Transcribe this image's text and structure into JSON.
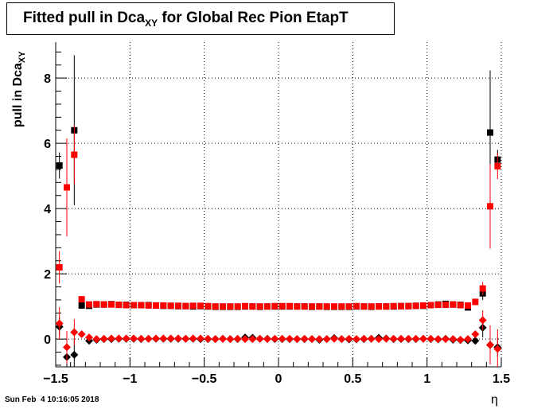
{
  "title": {
    "main": "Fitted pull in Dca",
    "sub": "XY",
    "rest": " for Global Rec Pion EtapT"
  },
  "ylabel": {
    "main": "pull in Dca",
    "sub": "XY"
  },
  "xlabel": "η",
  "datestamp": "Sun Feb  4 10:16:05 2018",
  "chart_data": {
    "type": "scatter",
    "xlim": [
      -1.5,
      1.5
    ],
    "ylim": [
      -0.85,
      9.1
    ],
    "xticks": [
      -1.5,
      -1,
      -0.5,
      0,
      0.5,
      1,
      1.5
    ],
    "xtick_labels": [
      "−1.5",
      "−1",
      "−0.5",
      "0",
      "0.5",
      "1",
      "1.5"
    ],
    "yticks": [
      0,
      2,
      4,
      6,
      8
    ],
    "ytick_labels": [
      "0",
      "2",
      "4",
      "6",
      "8"
    ],
    "grid": true,
    "series": [
      {
        "marker": "square",
        "color": "#000000",
        "points": [
          [
            -1.475,
            5.32,
            0.4
          ],
          [
            -1.375,
            6.4,
            2.3
          ],
          [
            -1.325,
            1.03,
            0.1
          ],
          [
            -1.275,
            1.02,
            0.05
          ],
          [
            -1.225,
            1.06,
            0.05
          ],
          [
            -1.175,
            1.06,
            0.04
          ],
          [
            -1.125,
            1.07,
            0.04
          ],
          [
            -1.075,
            1.05,
            0.03
          ],
          [
            -1.025,
            1.05,
            0.03
          ],
          [
            -0.975,
            1.04,
            0.03
          ],
          [
            -0.925,
            1.04,
            0.03
          ],
          [
            -0.875,
            1.04,
            0.03
          ],
          [
            -0.825,
            1.03,
            0.03
          ],
          [
            -0.775,
            1.02,
            0.03
          ],
          [
            -0.725,
            1.02,
            0.03
          ],
          [
            -0.675,
            1.01,
            0.03
          ],
          [
            -0.625,
            1.01,
            0.03
          ],
          [
            -0.575,
            1.0,
            0.03
          ],
          [
            -0.525,
            1.01,
            0.03
          ],
          [
            -0.475,
            1.0,
            0.03
          ],
          [
            -0.425,
            0.99,
            0.03
          ],
          [
            -0.375,
            0.99,
            0.03
          ],
          [
            -0.325,
            0.99,
            0.03
          ],
          [
            -0.275,
            0.99,
            0.03
          ],
          [
            -0.225,
            1.0,
            0.03
          ],
          [
            -0.175,
            1.0,
            0.03
          ],
          [
            -0.125,
            0.99,
            0.03
          ],
          [
            -0.075,
            1.0,
            0.03
          ],
          [
            -0.025,
            1.0,
            0.03
          ],
          [
            0.025,
            1.0,
            0.03
          ],
          [
            0.075,
            1.0,
            0.03
          ],
          [
            0.125,
            1.0,
            0.03
          ],
          [
            0.175,
            1.0,
            0.03
          ],
          [
            0.225,
            0.99,
            0.03
          ],
          [
            0.275,
            1.0,
            0.03
          ],
          [
            0.325,
            0.99,
            0.03
          ],
          [
            0.375,
            0.99,
            0.03
          ],
          [
            0.425,
            0.99,
            0.03
          ],
          [
            0.475,
            0.99,
            0.03
          ],
          [
            0.525,
            1.0,
            0.03
          ],
          [
            0.575,
            1.0,
            0.03
          ],
          [
            0.625,
            0.99,
            0.03
          ],
          [
            0.675,
            1.0,
            0.03
          ],
          [
            0.725,
            1.0,
            0.03
          ],
          [
            0.775,
            1.0,
            0.03
          ],
          [
            0.825,
            1.01,
            0.03
          ],
          [
            0.875,
            1.01,
            0.03
          ],
          [
            0.925,
            1.02,
            0.03
          ],
          [
            0.975,
            1.02,
            0.03
          ],
          [
            1.025,
            1.04,
            0.03
          ],
          [
            1.075,
            1.06,
            0.04
          ],
          [
            1.125,
            1.08,
            0.04
          ],
          [
            1.175,
            1.06,
            0.05
          ],
          [
            1.225,
            1.05,
            0.05
          ],
          [
            1.275,
            0.97,
            0.06
          ],
          [
            1.375,
            1.4,
            0.2
          ],
          [
            1.425,
            6.33,
            1.9
          ],
          [
            1.475,
            5.5,
            0.3
          ]
        ]
      },
      {
        "marker": "square",
        "color": "#ff0000",
        "points": [
          [
            -1.475,
            2.2,
            0.5
          ],
          [
            -1.425,
            4.65,
            1.5
          ],
          [
            -1.375,
            5.65,
            0.9
          ],
          [
            -1.325,
            1.22,
            0.1
          ],
          [
            -1.275,
            1.06,
            0.05
          ],
          [
            -1.225,
            1.07,
            0.05
          ],
          [
            -1.175,
            1.06,
            0.04
          ],
          [
            -1.125,
            1.06,
            0.04
          ],
          [
            -1.075,
            1.05,
            0.03
          ],
          [
            -1.025,
            1.04,
            0.03
          ],
          [
            -0.975,
            1.04,
            0.03
          ],
          [
            -0.925,
            1.04,
            0.03
          ],
          [
            -0.875,
            1.03,
            0.03
          ],
          [
            -0.825,
            1.03,
            0.03
          ],
          [
            -0.775,
            1.03,
            0.03
          ],
          [
            -0.725,
            1.02,
            0.03
          ],
          [
            -0.675,
            1.02,
            0.03
          ],
          [
            -0.625,
            1.01,
            0.03
          ],
          [
            -0.575,
            1.02,
            0.03
          ],
          [
            -0.525,
            1.02,
            0.03
          ],
          [
            -0.475,
            1.01,
            0.03
          ],
          [
            -0.425,
            1.0,
            0.03
          ],
          [
            -0.375,
            1.0,
            0.03
          ],
          [
            -0.325,
            1.0,
            0.03
          ],
          [
            -0.275,
            1.0,
            0.03
          ],
          [
            -0.225,
            1.01,
            0.03
          ],
          [
            -0.175,
            1.0,
            0.03
          ],
          [
            -0.125,
            1.0,
            0.03
          ],
          [
            -0.075,
            1.0,
            0.03
          ],
          [
            -0.025,
            1.01,
            0.03
          ],
          [
            0.025,
            1.01,
            0.03
          ],
          [
            0.075,
            1.01,
            0.03
          ],
          [
            0.125,
            1.0,
            0.03
          ],
          [
            0.175,
            1.0,
            0.03
          ],
          [
            0.225,
            1.0,
            0.03
          ],
          [
            0.275,
            1.0,
            0.03
          ],
          [
            0.325,
            1.0,
            0.03
          ],
          [
            0.375,
            1.0,
            0.03
          ],
          [
            0.425,
            1.0,
            0.03
          ],
          [
            0.475,
            1.0,
            0.03
          ],
          [
            0.525,
            1.01,
            0.03
          ],
          [
            0.575,
            1.0,
            0.03
          ],
          [
            0.625,
            1.0,
            0.03
          ],
          [
            0.675,
            1.0,
            0.03
          ],
          [
            0.725,
            1.0,
            0.03
          ],
          [
            0.775,
            1.01,
            0.03
          ],
          [
            0.825,
            1.01,
            0.03
          ],
          [
            0.875,
            1.01,
            0.03
          ],
          [
            0.925,
            1.02,
            0.03
          ],
          [
            0.975,
            1.03,
            0.03
          ],
          [
            1.025,
            1.04,
            0.03
          ],
          [
            1.075,
            1.05,
            0.04
          ],
          [
            1.125,
            1.05,
            0.04
          ],
          [
            1.175,
            1.06,
            0.05
          ],
          [
            1.225,
            1.04,
            0.05
          ],
          [
            1.275,
            1.03,
            0.06
          ],
          [
            1.325,
            1.14,
            0.1
          ],
          [
            1.375,
            1.55,
            0.2
          ],
          [
            1.425,
            4.07,
            1.3
          ],
          [
            1.475,
            5.3,
            0.4
          ]
        ]
      },
      {
        "marker": "diamond",
        "color": "#000000",
        "points": [
          [
            -1.475,
            0.38,
            0.3
          ],
          [
            -1.425,
            -0.55,
            0.3
          ],
          [
            -1.375,
            -0.48,
            0.5
          ],
          [
            -1.275,
            -0.05,
            0.05
          ],
          [
            -1.225,
            -0.02,
            0.04
          ],
          [
            -1.175,
            0.0,
            0.04
          ],
          [
            -1.125,
            0.0,
            0.03
          ],
          [
            -1.075,
            0.01,
            0.03
          ],
          [
            -1.025,
            0.01,
            0.03
          ],
          [
            -0.975,
            0.01,
            0.03
          ],
          [
            -0.925,
            0.0,
            0.03
          ],
          [
            -0.875,
            0.01,
            0.03
          ],
          [
            -0.825,
            0.01,
            0.03
          ],
          [
            -0.775,
            0.01,
            0.03
          ],
          [
            -0.725,
            0.01,
            0.03
          ],
          [
            -0.675,
            0.01,
            0.03
          ],
          [
            -0.625,
            0.01,
            0.03
          ],
          [
            -0.575,
            0.01,
            0.03
          ],
          [
            -0.525,
            0.0,
            0.03
          ],
          [
            -0.475,
            0.0,
            0.03
          ],
          [
            -0.425,
            0.0,
            0.03
          ],
          [
            -0.375,
            0.01,
            0.03
          ],
          [
            -0.325,
            0.0,
            0.03
          ],
          [
            -0.275,
            0.0,
            0.03
          ],
          [
            -0.225,
            0.05,
            0.03
          ],
          [
            -0.175,
            0.04,
            0.03
          ],
          [
            -0.125,
            0.01,
            0.03
          ],
          [
            -0.075,
            0.01,
            0.03
          ],
          [
            -0.025,
            0.0,
            0.03
          ],
          [
            0.025,
            0.0,
            0.03
          ],
          [
            0.075,
            0.0,
            0.03
          ],
          [
            0.125,
            0.0,
            0.03
          ],
          [
            0.175,
            0.0,
            0.03
          ],
          [
            0.225,
            0.0,
            0.03
          ],
          [
            0.275,
            -0.02,
            0.03
          ],
          [
            0.325,
            0.0,
            0.03
          ],
          [
            0.375,
            0.03,
            0.03
          ],
          [
            0.425,
            0.0,
            0.03
          ],
          [
            0.475,
            -0.01,
            0.03
          ],
          [
            0.525,
            -0.01,
            0.03
          ],
          [
            0.575,
            0.0,
            0.03
          ],
          [
            0.625,
            0.01,
            0.03
          ],
          [
            0.675,
            0.04,
            0.03
          ],
          [
            0.725,
            0.02,
            0.03
          ],
          [
            0.775,
            0.0,
            0.03
          ],
          [
            0.825,
            0.0,
            0.03
          ],
          [
            0.875,
            0.0,
            0.03
          ],
          [
            0.925,
            0.0,
            0.03
          ],
          [
            0.975,
            0.01,
            0.03
          ],
          [
            1.025,
            0.0,
            0.03
          ],
          [
            1.075,
            -0.01,
            0.03
          ],
          [
            1.125,
            0.01,
            0.04
          ],
          [
            1.175,
            -0.02,
            0.04
          ],
          [
            1.225,
            -0.03,
            0.05
          ],
          [
            1.275,
            -0.04,
            0.05
          ],
          [
            1.325,
            -0.05,
            0.08
          ],
          [
            1.375,
            0.35,
            0.3
          ],
          [
            1.425,
            -0.18,
            0.5
          ],
          [
            1.475,
            -0.25,
            0.3
          ]
        ]
      },
      {
        "marker": "diamond",
        "color": "#ff0000",
        "points": [
          [
            -1.475,
            0.48,
            0.5
          ],
          [
            -1.425,
            -0.25,
            0.5
          ],
          [
            -1.375,
            0.21,
            0.4
          ],
          [
            -1.325,
            0.15,
            0.08
          ],
          [
            -1.275,
            0.05,
            0.05
          ],
          [
            -1.225,
            0.0,
            0.04
          ],
          [
            -1.175,
            0.01,
            0.04
          ],
          [
            -1.125,
            0.02,
            0.03
          ],
          [
            -1.075,
            0.02,
            0.03
          ],
          [
            -1.025,
            0.02,
            0.03
          ],
          [
            -0.975,
            0.02,
            0.03
          ],
          [
            -0.925,
            0.01,
            0.03
          ],
          [
            -0.875,
            0.01,
            0.03
          ],
          [
            -0.825,
            0.02,
            0.03
          ],
          [
            -0.775,
            0.02,
            0.03
          ],
          [
            -0.725,
            0.02,
            0.03
          ],
          [
            -0.675,
            0.02,
            0.03
          ],
          [
            -0.625,
            0.01,
            0.03
          ],
          [
            -0.575,
            0.02,
            0.03
          ],
          [
            -0.525,
            0.02,
            0.03
          ],
          [
            -0.475,
            0.01,
            0.03
          ],
          [
            -0.425,
            0.0,
            0.03
          ],
          [
            -0.375,
            0.01,
            0.03
          ],
          [
            -0.325,
            0.0,
            0.03
          ],
          [
            -0.275,
            0.01,
            0.03
          ],
          [
            -0.225,
            0.0,
            0.03
          ],
          [
            -0.175,
            0.0,
            0.03
          ],
          [
            -0.125,
            0.01,
            0.03
          ],
          [
            -0.075,
            0.0,
            0.03
          ],
          [
            -0.025,
            0.01,
            0.03
          ],
          [
            0.025,
            0.01,
            0.03
          ],
          [
            0.075,
            0.01,
            0.03
          ],
          [
            0.125,
            0.0,
            0.03
          ],
          [
            0.175,
            0.01,
            0.03
          ],
          [
            0.225,
            0.0,
            0.03
          ],
          [
            0.275,
            0.0,
            0.03
          ],
          [
            0.325,
            0.0,
            0.03
          ],
          [
            0.375,
            0.01,
            0.03
          ],
          [
            0.425,
            0.0,
            0.03
          ],
          [
            0.475,
            0.01,
            0.03
          ],
          [
            0.525,
            0.0,
            0.03
          ],
          [
            0.575,
            0.01,
            0.03
          ],
          [
            0.625,
            0.01,
            0.03
          ],
          [
            0.675,
            0.0,
            0.03
          ],
          [
            0.725,
            0.01,
            0.03
          ],
          [
            0.775,
            0.01,
            0.03
          ],
          [
            0.825,
            0.01,
            0.03
          ],
          [
            0.875,
            0.01,
            0.03
          ],
          [
            0.925,
            0.01,
            0.03
          ],
          [
            0.975,
            0.01,
            0.03
          ],
          [
            1.025,
            0.01,
            0.03
          ],
          [
            1.075,
            0.0,
            0.03
          ],
          [
            1.125,
            0.0,
            0.04
          ],
          [
            1.175,
            0.0,
            0.04
          ],
          [
            1.225,
            -0.02,
            0.05
          ],
          [
            1.275,
            0.0,
            0.05
          ],
          [
            1.325,
            0.15,
            0.1
          ],
          [
            1.375,
            0.58,
            0.3
          ],
          [
            1.425,
            -0.18,
            0.6
          ],
          [
            1.475,
            -0.3,
            0.6
          ]
        ]
      }
    ]
  }
}
